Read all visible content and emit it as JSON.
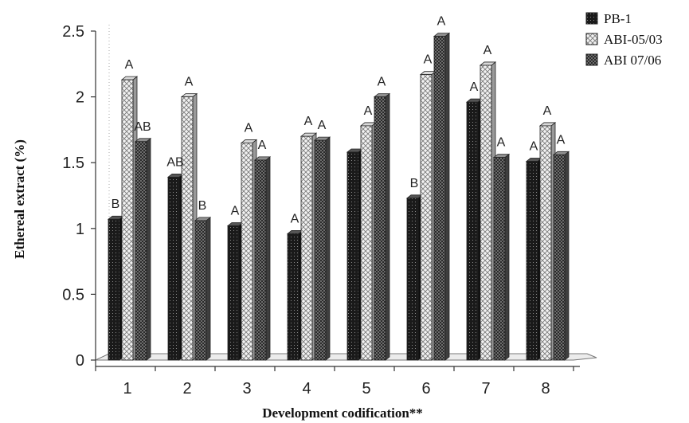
{
  "chart_data": {
    "type": "bar",
    "xlabel": "Development codification**",
    "ylabel": "Ethereal extract (%)",
    "ylim": [
      0,
      2.5
    ],
    "yticks": [
      "0",
      "0.5",
      "1",
      "1.5",
      "2",
      "2.5"
    ],
    "categories": [
      "1",
      "2",
      "3",
      "4",
      "5",
      "6",
      "7",
      "8"
    ],
    "legend_position": "top-right",
    "series": [
      {
        "name": "PB-1",
        "pattern": "black-dotted",
        "values": [
          1.07,
          1.39,
          1.02,
          0.96,
          1.58,
          1.23,
          1.96,
          1.51
        ],
        "labels": [
          "B",
          "AB",
          "A",
          "A",
          "",
          "B",
          "A",
          "A"
        ]
      },
      {
        "name": "ABI-05/03",
        "pattern": "light-crosshatch",
        "values": [
          2.13,
          2.0,
          1.65,
          1.7,
          1.78,
          2.17,
          2.24,
          1.78
        ],
        "labels": [
          "A",
          "A",
          "A",
          "A",
          "A",
          "A",
          "A",
          "A"
        ]
      },
      {
        "name": "ABI 07/06",
        "pattern": "dark-checker",
        "values": [
          1.66,
          1.06,
          1.52,
          1.67,
          2.0,
          2.46,
          1.54,
          1.56
        ],
        "labels": [
          "AB",
          "B",
          "A",
          "A",
          "A",
          "A",
          "A",
          "A"
        ]
      }
    ]
  }
}
